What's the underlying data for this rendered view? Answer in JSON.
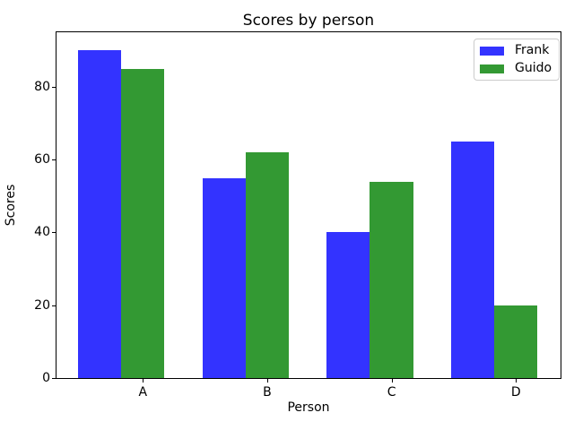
{
  "figure": {
    "background": "#ffffff",
    "axes_background": "#ffffff",
    "spine_color": "#000000"
  },
  "chart_data": {
    "type": "bar",
    "title": "Scores by person",
    "xlabel": "Person",
    "ylabel": "Scores",
    "categories": [
      "A",
      "B",
      "C",
      "D"
    ],
    "series": [
      {
        "name": "Frank",
        "color": "#3333ff",
        "values": [
          90,
          55,
          40,
          65
        ]
      },
      {
        "name": "Guido",
        "color": "#339933",
        "values": [
          85,
          62,
          54,
          20
        ]
      }
    ],
    "ylim": [
      0,
      95
    ],
    "yticks": [
      0,
      20,
      40,
      60,
      80
    ],
    "grid": false,
    "legend_position": "upper right",
    "bar_grouping": "side-by-side",
    "tick_alignment": "under-second-series-bar"
  }
}
